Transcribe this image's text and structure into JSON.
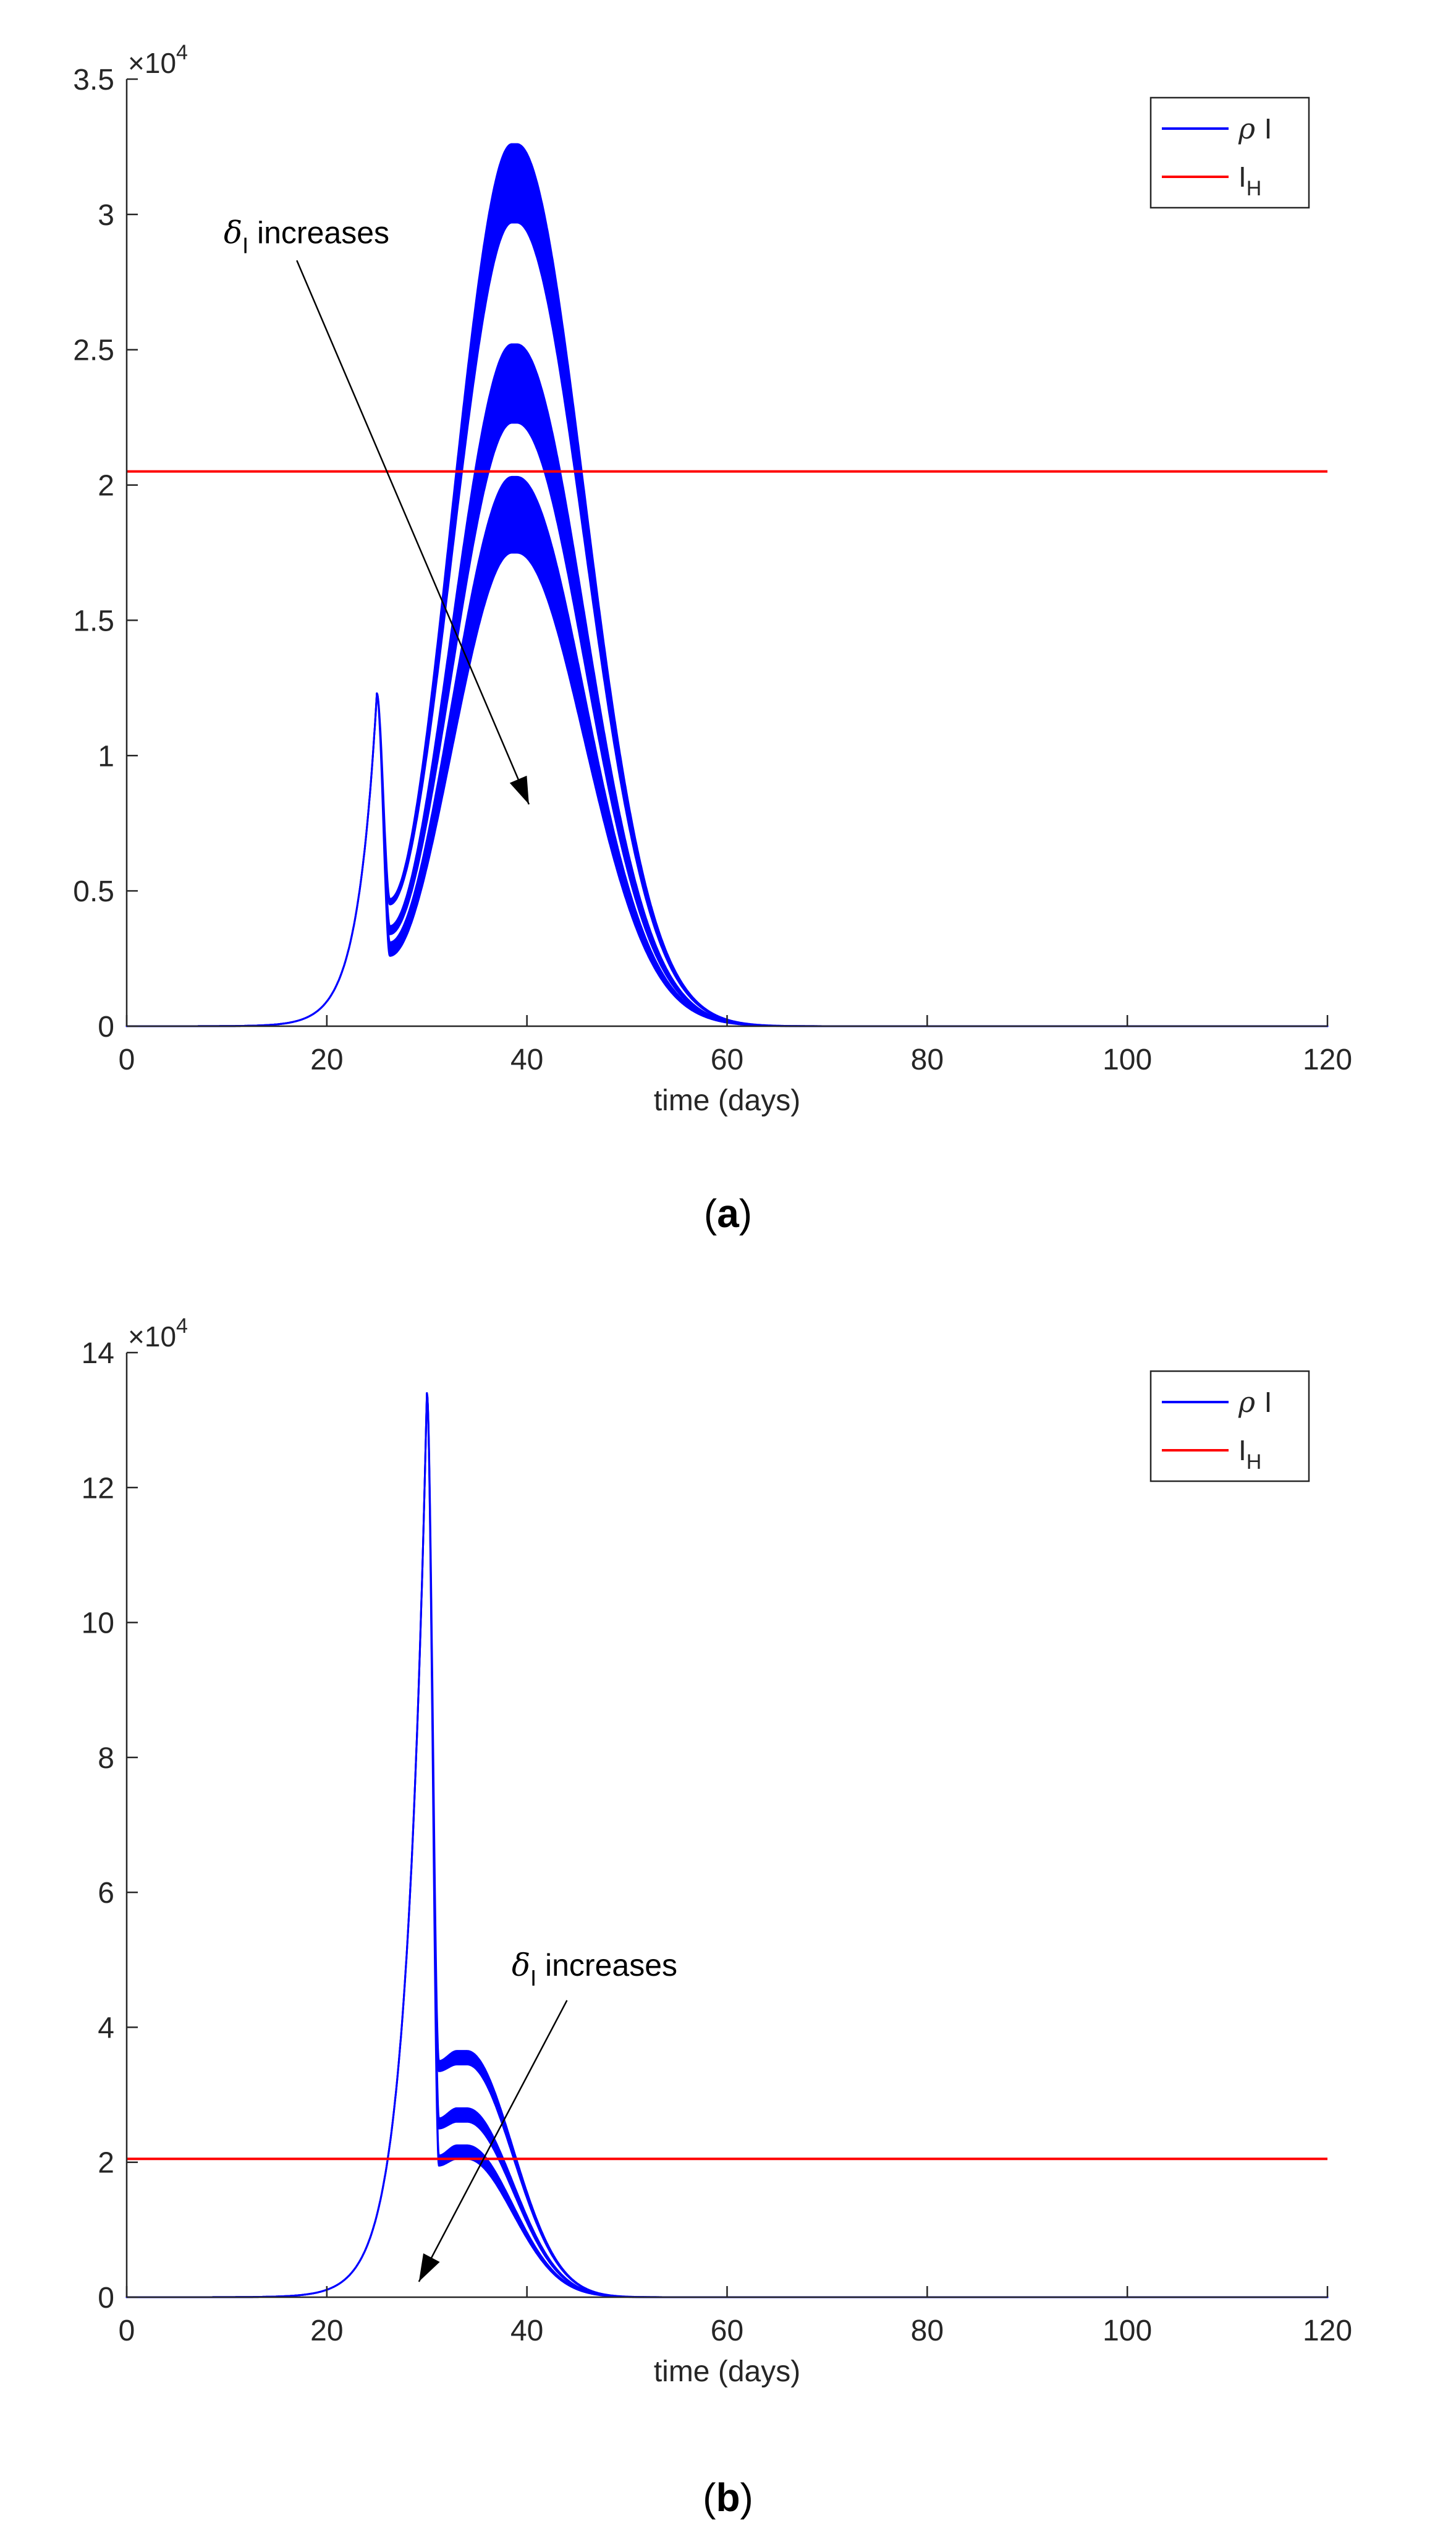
{
  "colors": {
    "series": "#0000ff",
    "threshold": "#ff0000",
    "axis": "#262626",
    "annotation": "#000000"
  },
  "chart_data": [
    {
      "type": "line",
      "panel_label": "a",
      "xlabel": "time (days)",
      "ylabel": "",
      "xlim": [
        0,
        120
      ],
      "ylim": [
        0,
        35000
      ],
      "x_ticks": [
        0,
        20,
        40,
        60,
        80,
        100,
        120
      ],
      "y_ticks": [
        0,
        5000,
        10000,
        15000,
        20000,
        25000,
        30000,
        35000
      ],
      "y_tick_labels": [
        "0",
        "0.5",
        "1",
        "1.5",
        "2",
        "2.5",
        "3",
        "3.5"
      ],
      "y_multiplier": {
        "base": "×10",
        "exponent": "4"
      },
      "grid": false,
      "legend": {
        "placement": "top-right",
        "entries": [
          {
            "symbol": "ρ",
            "text": "I",
            "sub": "",
            "color": "#0000ff"
          },
          {
            "symbol": "",
            "text": "I",
            "sub": "H",
            "color": "#ff0000"
          }
        ]
      },
      "annotation": {
        "symbol": "δ",
        "sub": "I",
        "text": "increases",
        "arrow_from": [
          17,
          28300
        ],
        "arrow_to": [
          40.2,
          8200
        ]
      },
      "threshold": {
        "name": "I_H",
        "value": 20500
      },
      "series_params": {
        "rise_rate": 0.52,
        "spike_time": 25,
        "spike_value": 12300,
        "drop_end": 26.3,
        "band_rise_end": 38.5,
        "band_peak_time": 39,
        "decay_scale": 9.5
      },
      "series": [
        {
          "name": "ρ I",
          "trough_upper": 4700,
          "trough_lower": 4500,
          "peak_upper": 32600,
          "peak_lower": 29700
        },
        {
          "name": "ρ I",
          "trough_upper": 3700,
          "trough_lower": 3400,
          "peak_upper": 25200,
          "peak_lower": 22300
        },
        {
          "name": "ρ I",
          "trough_upper": 3100,
          "trough_lower": 2600,
          "peak_upper": 20300,
          "peak_lower": 17500
        }
      ]
    },
    {
      "type": "line",
      "panel_label": "b",
      "xlabel": "time (days)",
      "ylabel": "",
      "xlim": [
        0,
        120
      ],
      "ylim": [
        0,
        140000
      ],
      "x_ticks": [
        0,
        20,
        40,
        60,
        80,
        100,
        120
      ],
      "y_ticks": [
        0,
        20000,
        40000,
        60000,
        80000,
        100000,
        120000,
        140000
      ],
      "y_tick_labels": [
        "0",
        "2",
        "4",
        "6",
        "8",
        "10",
        "12",
        "14"
      ],
      "y_multiplier": {
        "base": "×10",
        "exponent": "4"
      },
      "grid": false,
      "legend": {
        "placement": "top-right",
        "entries": [
          {
            "symbol": "ρ",
            "text": "I",
            "sub": "",
            "color": "#0000ff"
          },
          {
            "symbol": "",
            "text": "I",
            "sub": "H",
            "color": "#ff0000"
          }
        ]
      },
      "annotation": {
        "symbol": "δ",
        "sub": "I",
        "text": "increases",
        "arrow_from": [
          44,
          44000
        ],
        "arrow_to": [
          29.2,
          2300
        ]
      },
      "threshold": {
        "name": "I_H",
        "value": 20500
      },
      "series_params": {
        "rise_rate": 0.48,
        "spike_time": 30,
        "spike_value": 134000,
        "drop_end": 31.2,
        "band_rise_end": 33,
        "band_peak_time": 34,
        "decay_scale": 6.5
      },
      "series": [
        {
          "name": "ρ I",
          "trough_upper": 35000,
          "trough_lower": 33500,
          "peak_upper": 36500,
          "peak_lower": 34500
        },
        {
          "name": "ρ I",
          "trough_upper": 26500,
          "trough_lower": 25000,
          "peak_upper": 28000,
          "peak_lower": 26000
        },
        {
          "name": "ρ I",
          "trough_upper": 21000,
          "trough_lower": 19500,
          "peak_upper": 22500,
          "peak_lower": 20500
        }
      ]
    }
  ]
}
